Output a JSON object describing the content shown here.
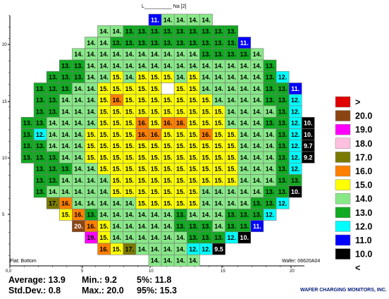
{
  "title": "L__________ Na  [2]",
  "flat_label": "Flat: Bottom",
  "wafer_label": "Wafer: 06620A04",
  "company": "WAFER CHARGING MONITORS, INC.",
  "stats": {
    "average": "Average: 13.9",
    "stddev": "Std.Dev.: 0.8",
    "min": "Min.: 9.2",
    "max": "Max.: 20.0",
    "p5": "5%: 11.8",
    "p95": "95%: 15.3"
  },
  "colors": {
    "gt20": "#e00000",
    "c20": "#8b4513",
    "c19": "#ff00ff",
    "c18": "#ffc0e0",
    "c17": "#7a7a00",
    "c16": "#ff8000",
    "c15": "#ffff00",
    "c14": "#88e888",
    "c13": "#11aa22",
    "c12": "#00ffff",
    "c11": "#0000ff",
    "c10": "#000000",
    "blank": "#ffffff"
  },
  "legend": [
    {
      "label": ">",
      "color": "#e00000"
    },
    {
      "label": "20.0",
      "color": "#8b4513"
    },
    {
      "label": "19.0",
      "color": "#ff00ff"
    },
    {
      "label": "18.0",
      "color": "#ffc0e0"
    },
    {
      "label": "17.0",
      "color": "#7a7a00"
    },
    {
      "label": "16.0",
      "color": "#ff8000"
    },
    {
      "label": "15.0",
      "color": "#ffff00"
    },
    {
      "label": "14.0",
      "color": "#88e888"
    },
    {
      "label": "13.0",
      "color": "#11aa22"
    },
    {
      "label": "12.0",
      "color": "#00ffff"
    },
    {
      "label": "11.0",
      "color": "#0000ff"
    },
    {
      "label": "10.0",
      "color": "#000000"
    },
    {
      "label": "<",
      "color": null
    }
  ],
  "chart_data": {
    "type": "heatmap",
    "title": "L__________ Na  [2]",
    "x_ticks": [
      "0,0",
      "5",
      "10",
      "15",
      "20"
    ],
    "y_ticks": [
      "20",
      "15",
      "10",
      "5"
    ],
    "rows": [
      {
        "col_start": 10,
        "cells": [
          "11.",
          "14.",
          "14.",
          "14.",
          "14."
        ]
      },
      {
        "col_start": 6,
        "cells": [
          "14.",
          "14.",
          "13.",
          "13.",
          "13.",
          "13.",
          "13.",
          "13.",
          "13.",
          "13.",
          "13."
        ]
      },
      {
        "col_start": 5,
        "cells": [
          "14.",
          "14.",
          "13.",
          "13.",
          "13.",
          "13.",
          "13.",
          "13.",
          "13.",
          "13.",
          "13.",
          "13.",
          "11."
        ]
      },
      {
        "col_start": 4,
        "cells": [
          "14.",
          "14.",
          "14.",
          "14.",
          "14.",
          "14.",
          "14.",
          "14.",
          "14.",
          "14.",
          "13.",
          "13.",
          "13.",
          "13.",
          "14."
        ]
      },
      {
        "col_start": 3,
        "cells": [
          "13.",
          "13.",
          "14.",
          "14.",
          "14.",
          "14.",
          "14.",
          "14.",
          "14.",
          "14.",
          "14.",
          "14.",
          "14.",
          "14.",
          "14.",
          "14.",
          "13."
        ]
      },
      {
        "col_start": 2,
        "cells": [
          "13.",
          "13.",
          "13.",
          "14.",
          "14.",
          "15.",
          "14.",
          "15.",
          "15.",
          "15.",
          "14.",
          "15.",
          "14.",
          "14.",
          "14.",
          "14.",
          "14.",
          "13.",
          "12."
        ]
      },
      {
        "col_start": 1,
        "cells": [
          "13.",
          "13.",
          "13.",
          "14.",
          "14.",
          "15.",
          "15.",
          "15.",
          "15.",
          "15.",
          "",
          "15.",
          "15.",
          "14.",
          "14.",
          "14.",
          "14.",
          "14.",
          "13.",
          "13.",
          "11."
        ]
      },
      {
        "col_start": 1,
        "cells": [
          "13.",
          "13.",
          "14.",
          "14.",
          "14.",
          "15.",
          "16.",
          "15.",
          "15.",
          "15.",
          "15.",
          "15.",
          "15.",
          "15.",
          "14.",
          "14.",
          "14.",
          "14.",
          "13.",
          "13.",
          "12."
        ]
      },
      {
        "col_start": 1,
        "cells": [
          "13.",
          "13.",
          "14.",
          "14.",
          "14.",
          "15.",
          "15.",
          "15.",
          "15.",
          "15.",
          "15.",
          "15.",
          "15.",
          "15.",
          "15.",
          "14.",
          "14.",
          "14.",
          "14.",
          "13.",
          "12."
        ]
      },
      {
        "col_start": 0,
        "cells": [
          "13.",
          "13.",
          "14.",
          "14.",
          "14.",
          "14.",
          "15.",
          "15.",
          "15.",
          "16.",
          "15.",
          "16.",
          "16.",
          "15.",
          "15.",
          "15.",
          "14.",
          "14.",
          "14.",
          "13.",
          "13.",
          "12.",
          "10."
        ]
      },
      {
        "col_start": 0,
        "cells": [
          "13.",
          "12.",
          "14.",
          "14.",
          "14.",
          "15.",
          "15.",
          "15.",
          "15.",
          "16.",
          "16.",
          "15.",
          "15.",
          "15.",
          "16.",
          "15.",
          "15.",
          "14.",
          "14.",
          "14.",
          "13.",
          "12.",
          "10."
        ]
      },
      {
        "col_start": 0,
        "cells": [
          "13.",
          "13.",
          "14.",
          "14.",
          "14.",
          "15.",
          "15.",
          "15.",
          "15.",
          "15.",
          "15.",
          "15.",
          "15.",
          "15.",
          "15.",
          "15.",
          "15.",
          "14.",
          "14.",
          "14.",
          "13.",
          "12.",
          "9.7"
        ]
      },
      {
        "col_start": 0,
        "cells": [
          "13.",
          "13.",
          "13.",
          "14.",
          "14.",
          "15.",
          "15.",
          "15.",
          "15.",
          "15.",
          "15.",
          "15.",
          "15.",
          "15.",
          "15.",
          "15.",
          "15.",
          "14.",
          "14.",
          "14.",
          "13.",
          "12.",
          "9.2"
        ]
      },
      {
        "col_start": 1,
        "cells": [
          "13.",
          "13.",
          "13.",
          "14.",
          "14.",
          "15.",
          "15.",
          "15.",
          "15.",
          "15.",
          "15.",
          "15.",
          "15.",
          "15.",
          "15.",
          "15.",
          "14.",
          "14.",
          "14.",
          "13.",
          "12."
        ]
      },
      {
        "col_start": 1,
        "cells": [
          "13.",
          "13.",
          "14.",
          "14.",
          "14.",
          "14.",
          "15.",
          "15.",
          "15.",
          "15.",
          "15.",
          "15.",
          "15.",
          "15.",
          "15.",
          "15.",
          "14.",
          "14.",
          "14.",
          "13.",
          "13."
        ]
      },
      {
        "col_start": 1,
        "cells": [
          "13.",
          "14.",
          "14.",
          "14.",
          "14.",
          "14.",
          "15.",
          "15.",
          "15.",
          "15.",
          "15.",
          "15.",
          "15.",
          "14.",
          "14.",
          "14.",
          "14.",
          "14.",
          "13.",
          "13.",
          "10."
        ]
      },
      {
        "col_start": 2,
        "cells": [
          "17.",
          "16.",
          "14.",
          "14.",
          "14.",
          "14.",
          "14.",
          "15.",
          "15.",
          "15.",
          "15.",
          "15.",
          "14.",
          "14.",
          "14.",
          "14.",
          "13.",
          "13.",
          "12."
        ]
      },
      {
        "col_start": 3,
        "cells": [
          "15.",
          "16.",
          "13.",
          "14.",
          "14.",
          "14.",
          "14.",
          "14.",
          "14.",
          "13.",
          "14.",
          "14.",
          "14.",
          "13.",
          "13.",
          "13.",
          "12."
        ]
      },
      {
        "col_start": 4,
        "cells": [
          "20.",
          "16.",
          "15.",
          "14.",
          "14.",
          "14.",
          "14.",
          "14.",
          "13.",
          "13.",
          "13.",
          "14.",
          "13.",
          "13.",
          "11."
        ]
      },
      {
        "col_start": 5,
        "cells": [
          "19.",
          "15.",
          "14.",
          "14.",
          "14.",
          "14.",
          "14.",
          "14.",
          "13.",
          "13.",
          "13.",
          "12.",
          "10."
        ]
      },
      {
        "col_start": 6,
        "cells": [
          "16.",
          "15.",
          "17.",
          "14.",
          "14.",
          "14.",
          "14.",
          "12.",
          "12.",
          "9.5"
        ]
      },
      {
        "col_start": 10,
        "cells": [
          "14.",
          "14.",
          "14.",
          "14."
        ]
      }
    ],
    "vmin": 9.2,
    "vmax": 20.0
  }
}
